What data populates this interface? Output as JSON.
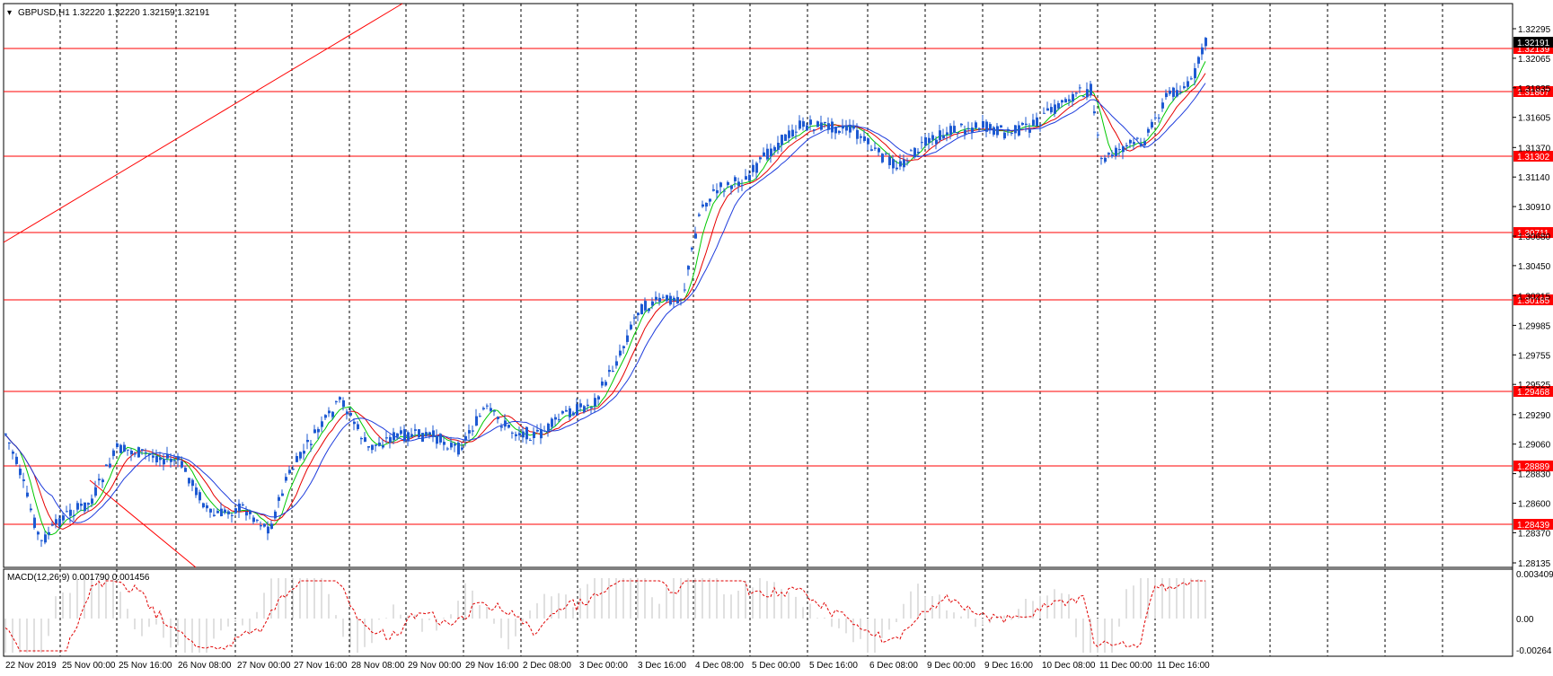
{
  "main_chart": {
    "header": "GBPUSD,H1  1.32220 1.32220 1.32159 1.32191",
    "price_labels": [
      "1.32295",
      "1.32065",
      "1.31835",
      "1.31605",
      "1.31370",
      "1.31140",
      "1.30910",
      "1.30680",
      "1.30450",
      "1.30215",
      "1.29985",
      "1.29755",
      "1.29525",
      "1.29290",
      "1.29060",
      "1.28830",
      "1.28600",
      "1.28370",
      "1.28135"
    ],
    "current_price": "1.32191",
    "levels": [
      "1.32139",
      "1.31807",
      "1.31302",
      "1.30711",
      "1.30185",
      "1.29468",
      "1.28889",
      "1.28439"
    ],
    "colors": {
      "levels": "#ff0000",
      "candles": "#1e5ad2",
      "ma_fast": "#00c800",
      "ma_mid": "#e60000",
      "ma_slow": "#1e3cdc",
      "grid": "#000000"
    }
  },
  "macd": {
    "header": "MACD(12,26,9) 0.001790 0.001456",
    "scale_labels": [
      "0.003409",
      "0.00",
      "-0.00264"
    ],
    "colors": {
      "hist": "#c0c0c0",
      "signal": "#e00000"
    }
  },
  "time_axis": [
    "22 Nov 2019",
    "25 Nov 00:00",
    "25 Nov 16:00",
    "26 Nov 08:00",
    "27 Nov 00:00",
    "27 Nov 16:00",
    "28 Nov 08:00",
    "29 Nov 00:00",
    "29 Nov 16:00",
    "2 Dec 08:00",
    "3 Dec 00:00",
    "3 Dec 16:00",
    "4 Dec 08:00",
    "5 Dec 00:00",
    "5 Dec 16:00",
    "6 Dec 08:00",
    "9 Dec 00:00",
    "9 Dec 16:00",
    "10 Dec 08:00",
    "11 Dec 00:00",
    "11 Dec 16:00"
  ]
}
